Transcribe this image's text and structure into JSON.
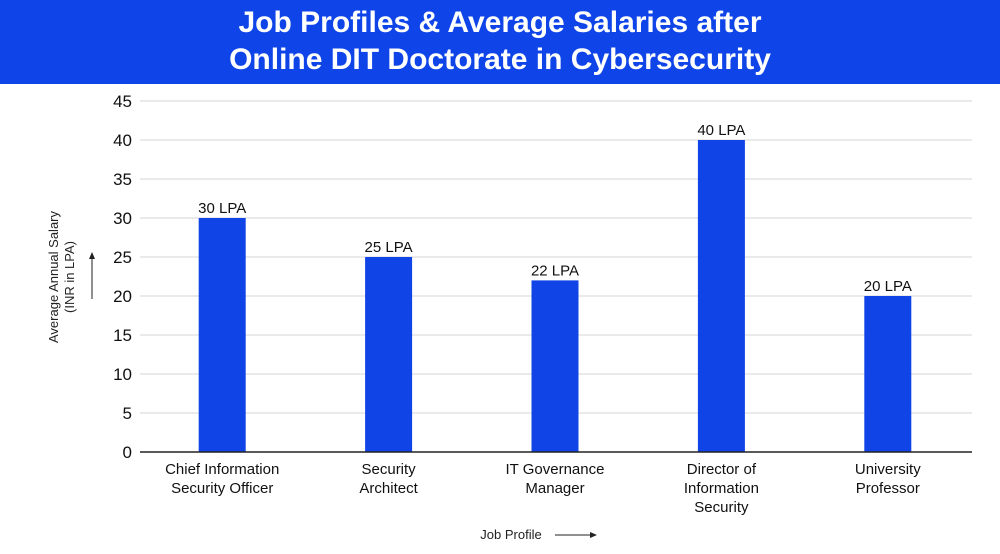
{
  "header": {
    "title_line1": "Job Profiles & Average Salaries after",
    "title_line2": "Online DIT Doctorate in Cybersecurity"
  },
  "colors": {
    "banner": "#0f45e8",
    "bar": "#1144e6",
    "grid": "#d4d4d4",
    "axis": "#222222"
  },
  "chart_data": {
    "type": "bar",
    "title": "Job Profiles & Average Salaries after Online DIT Doctorate in Cybersecurity",
    "categories": [
      [
        "Chief Information",
        "Security Officer"
      ],
      [
        "Security",
        "Architect"
      ],
      [
        "IT Governance",
        "Manager"
      ],
      [
        "Director of",
        "Information",
        "Security"
      ],
      [
        "University",
        "Professor"
      ]
    ],
    "values": [
      30,
      25,
      22,
      40,
      20
    ],
    "data_labels": [
      "30 LPA",
      "25 LPA",
      "22 LPA",
      "40 LPA",
      "20 LPA"
    ],
    "xlabel": "Job Profile",
    "ylabel_line1": "Average Annual Salary",
    "ylabel_line2": "(INR in LPA)",
    "ylim": [
      0,
      45
    ],
    "yticks": [
      0,
      5,
      10,
      15,
      20,
      25,
      30,
      35,
      40,
      45
    ],
    "grid": true,
    "legend": "none"
  }
}
